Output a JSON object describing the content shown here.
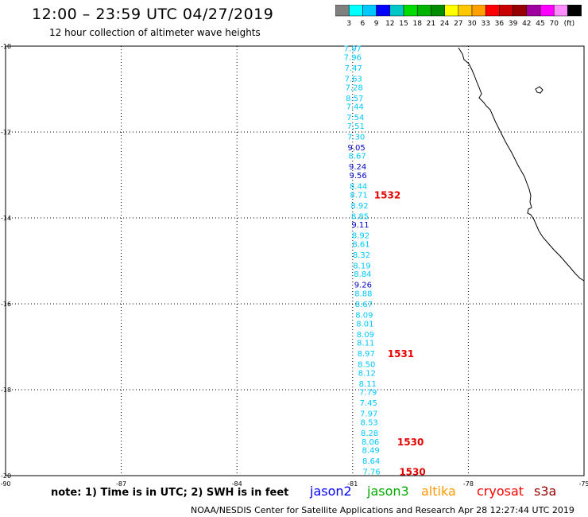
{
  "header": {
    "title": "12:00 – 23:59 UTC 04/27/2019",
    "subtitle": "12 hour collection of altimeter wave heights"
  },
  "colorbar": {
    "unit": "(ft)",
    "colors": [
      "#808080",
      "#00ffff",
      "#00c8ff",
      "#0000ff",
      "#00c8c8",
      "#00dc00",
      "#00b400",
      "#008c00",
      "#ffff00",
      "#ffc800",
      "#ffa000",
      "#ff0000",
      "#c80000",
      "#960000",
      "#a000a0",
      "#ff00ff",
      "#ff8cff",
      "#000000"
    ],
    "labels": [
      "3",
      "6",
      "9",
      "12",
      "15",
      "18",
      "21",
      "24",
      "27",
      "30",
      "33",
      "36",
      "39",
      "42",
      "45",
      "70"
    ]
  },
  "map": {
    "longitudes": [
      "-90",
      "-87",
      "-84",
      "-81",
      "-78",
      "-75"
    ],
    "latitudes": [
      "-10",
      "-12",
      "-14",
      "-16",
      "-18",
      "-20"
    ],
    "lon_range": [
      -90,
      -75
    ],
    "lat_range": [
      -20,
      -10
    ]
  },
  "wave_heights": [
    {
      "v": "7.97",
      "lon": -81.0,
      "lat": -10.05,
      "c": "#00c8ff"
    },
    {
      "v": "7.96",
      "lon": -81.0,
      "lat": -10.25,
      "c": "#00c8ff"
    },
    {
      "v": "7.47",
      "lon": -80.98,
      "lat": -10.5,
      "c": "#00c8ff"
    },
    {
      "v": "7.63",
      "lon": -80.98,
      "lat": -10.75,
      "c": "#00c8ff"
    },
    {
      "v": "7.28",
      "lon": -80.96,
      "lat": -10.95,
      "c": "#00c8ff"
    },
    {
      "v": "8.57",
      "lon": -80.95,
      "lat": -11.2,
      "c": "#00c8ff"
    },
    {
      "v": "7.44",
      "lon": -80.94,
      "lat": -11.4,
      "c": "#00c8ff"
    },
    {
      "v": "7.54",
      "lon": -80.93,
      "lat": -11.65,
      "c": "#00c8ff"
    },
    {
      "v": "7.51",
      "lon": -80.92,
      "lat": -11.85,
      "c": "#00c8ff"
    },
    {
      "v": "7.30",
      "lon": -80.91,
      "lat": -12.1,
      "c": "#00c8ff"
    },
    {
      "v": "9.05",
      "lon": -80.9,
      "lat": -12.35,
      "c": "#0000c8"
    },
    {
      "v": "8.67",
      "lon": -80.88,
      "lat": -12.55,
      "c": "#00c8ff"
    },
    {
      "v": "9.24",
      "lon": -80.87,
      "lat": -12.8,
      "c": "#0000c8"
    },
    {
      "v": "9.56",
      "lon": -80.86,
      "lat": -13.0,
      "c": "#0000c8"
    },
    {
      "v": "8.44",
      "lon": -80.85,
      "lat": -13.25,
      "c": "#00c8ff"
    },
    {
      "v": "8.71",
      "lon": -80.84,
      "lat": -13.45,
      "c": "#00c8ff"
    },
    {
      "v": "8.92",
      "lon": -80.82,
      "lat": -13.7,
      "c": "#00c8ff"
    },
    {
      "v": "8.85",
      "lon": -80.81,
      "lat": -13.95,
      "c": "#00c8ff"
    },
    {
      "v": "9.11",
      "lon": -80.8,
      "lat": -14.15,
      "c": "#0000c8"
    },
    {
      "v": "8.92",
      "lon": -80.79,
      "lat": -14.4,
      "c": "#00c8ff"
    },
    {
      "v": "8.61",
      "lon": -80.78,
      "lat": -14.6,
      "c": "#00c8ff"
    },
    {
      "v": "8.32",
      "lon": -80.77,
      "lat": -14.85,
      "c": "#00c8ff"
    },
    {
      "v": "8.19",
      "lon": -80.76,
      "lat": -15.1,
      "c": "#00c8ff"
    },
    {
      "v": "8.84",
      "lon": -80.74,
      "lat": -15.3,
      "c": "#00c8ff"
    },
    {
      "v": "9.26",
      "lon": -80.73,
      "lat": -15.55,
      "c": "#0000c8"
    },
    {
      "v": "8.88",
      "lon": -80.72,
      "lat": -15.75,
      "c": "#00c8ff"
    },
    {
      "v": "8.67",
      "lon": -80.71,
      "lat": -16.0,
      "c": "#00c8ff"
    },
    {
      "v": "8.09",
      "lon": -80.7,
      "lat": -16.25,
      "c": "#00c8ff"
    },
    {
      "v": "8.01",
      "lon": -80.68,
      "lat": -16.45,
      "c": "#00c8ff"
    },
    {
      "v": "8.09",
      "lon": -80.67,
      "lat": -16.7,
      "c": "#00c8ff"
    },
    {
      "v": "8.11",
      "lon": -80.66,
      "lat": -16.9,
      "c": "#00c8ff"
    },
    {
      "v": "8.97",
      "lon": -80.65,
      "lat": -17.15,
      "c": "#00c8ff"
    },
    {
      "v": "8.50",
      "lon": -80.64,
      "lat": -17.4,
      "c": "#00c8ff"
    },
    {
      "v": "8.12",
      "lon": -80.63,
      "lat": -17.6,
      "c": "#00c8ff"
    },
    {
      "v": "8.11",
      "lon": -80.61,
      "lat": -17.85,
      "c": "#00c8ff"
    },
    {
      "v": "7.79",
      "lon": -80.6,
      "lat": -18.05,
      "c": "#00c8ff"
    },
    {
      "v": "7.45",
      "lon": -80.59,
      "lat": -18.3,
      "c": "#00c8ff"
    },
    {
      "v": "7.97",
      "lon": -80.58,
      "lat": -18.55,
      "c": "#00c8ff"
    },
    {
      "v": "8.53",
      "lon": -80.57,
      "lat": -18.75,
      "c": "#00c8ff"
    },
    {
      "v": "8.28",
      "lon": -80.56,
      "lat": -19.0,
      "c": "#00c8ff"
    },
    {
      "v": "8.06",
      "lon": -80.54,
      "lat": -19.2,
      "c": "#00c8ff"
    },
    {
      "v": "8.49",
      "lon": -80.53,
      "lat": -19.4,
      "c": "#00c8ff"
    },
    {
      "v": "8.64",
      "lon": -80.52,
      "lat": -19.65,
      "c": "#00c8ff"
    },
    {
      "v": "7.76",
      "lon": -80.51,
      "lat": -19.9,
      "c": "#00c8ff"
    }
  ],
  "time_labels": [
    {
      "v": "1532",
      "lon": -80.1,
      "lat": -13.45
    },
    {
      "v": "1531",
      "lon": -79.75,
      "lat": -17.15
    },
    {
      "v": "1530",
      "lon": -79.5,
      "lat": -19.2
    },
    {
      "v": "1530",
      "lon": -79.45,
      "lat": -19.9
    }
  ],
  "time_label_color": "#e60000",
  "note": "note:  1) Time is in UTC;  2) SWH is in feet",
  "satellites": [
    {
      "name": "jason2",
      "color": "#0000ff"
    },
    {
      "name": "jason3",
      "color": "#00aa00"
    },
    {
      "name": "altika",
      "color": "#ff9900"
    },
    {
      "name": "cryosat",
      "color": "#ff0000"
    },
    {
      "name": "s3a",
      "color": "#960000"
    }
  ],
  "footer": "NOAA/NESDIS Center for Satellite Applications and Research    Apr 28 12:27:44 UTC 2019"
}
